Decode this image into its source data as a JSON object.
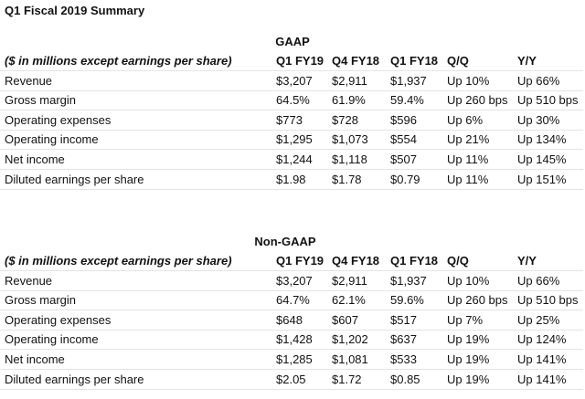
{
  "title": "Q1 Fiscal 2019 Summary",
  "sections": [
    {
      "heading": "GAAP",
      "columns": [
        "($ in millions except earnings per share)",
        "Q1 FY19",
        "Q4 FY18",
        "Q1 FY18",
        "Q/Q",
        "Y/Y"
      ],
      "rows": [
        [
          "Revenue",
          "$3,207",
          "$2,911",
          "$1,937",
          "Up 10%",
          "Up 66%"
        ],
        [
          "Gross margin",
          "64.5%",
          "61.9%",
          "59.4%",
          "Up 260 bps",
          "Up 510 bps"
        ],
        [
          "Operating expenses",
          "$773",
          "$728",
          "$596",
          "Up 6%",
          "Up 30%"
        ],
        [
          "Operating income",
          "$1,295",
          "$1,073",
          "$554",
          "Up 21%",
          "Up 134%"
        ],
        [
          "Net income",
          "$1,244",
          "$1,118",
          "$507",
          "Up 11%",
          "Up 145%"
        ],
        [
          "Diluted earnings per share",
          "$1.98",
          "$1.78",
          "$0.79",
          "Up 11%",
          "Up 151%"
        ]
      ]
    },
    {
      "heading": "Non-GAAP",
      "columns": [
        "($ in millions except earnings per share)",
        "Q1 FY19",
        "Q4 FY18",
        "Q1 FY18",
        "Q/Q",
        "Y/Y"
      ],
      "rows": [
        [
          "Revenue",
          "$3,207",
          "$2,911",
          "$1,937",
          "Up 10%",
          "Up 66%"
        ],
        [
          "Gross margin",
          "64.7%",
          "62.1%",
          "59.6%",
          "Up 260 bps",
          "Up 510 bps"
        ],
        [
          "Operating expenses",
          "$648",
          "$607",
          "$517",
          "Up 7%",
          "Up 25%"
        ],
        [
          "Operating income",
          "$1,428",
          "$1,202",
          "$637",
          "Up 19%",
          "Up 124%"
        ],
        [
          "Net income",
          "$1,285",
          "$1,081",
          "$533",
          "Up 19%",
          "Up 141%"
        ],
        [
          "Diluted earnings per share",
          "$2.05",
          "$1.72",
          "$0.85",
          "Up 19%",
          "Up 141%"
        ]
      ]
    }
  ]
}
